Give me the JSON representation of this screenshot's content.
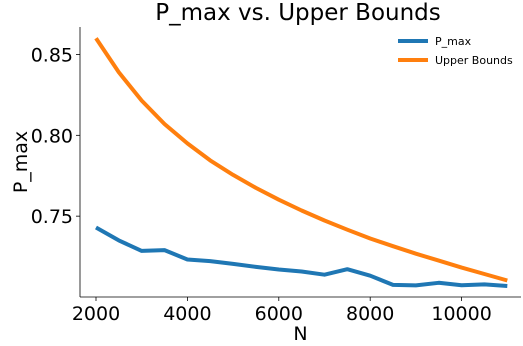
{
  "chart_data": {
    "type": "line",
    "title": "P_max vs. Upper Bounds",
    "xlabel": "N",
    "ylabel": "P_max",
    "xlim": [
      1650,
      11300
    ],
    "ylim": [
      0.7,
      0.867
    ],
    "xticks": [
      2000,
      4000,
      6000,
      8000,
      10000
    ],
    "yticks": [
      0.75,
      0.8,
      0.85
    ],
    "ytick_labels": [
      "0.75",
      "0.80",
      "0.85"
    ],
    "grid": false,
    "legend_position": "top-right",
    "x": [
      2000,
      2500,
      3000,
      3500,
      4000,
      4500,
      5000,
      5500,
      6000,
      6500,
      7000,
      7500,
      8000,
      8500,
      9000,
      9500,
      10000,
      10500,
      11000
    ],
    "series": [
      {
        "name": "P_max",
        "color": "#1f77b4",
        "values": [
          0.743,
          0.735,
          0.7285,
          0.729,
          0.7232,
          0.7222,
          0.7205,
          0.7186,
          0.717,
          0.7158,
          0.7138,
          0.7172,
          0.7132,
          0.7075,
          0.7072,
          0.7088,
          0.7073,
          0.7078,
          0.7068
        ]
      },
      {
        "name": "Upper Bounds",
        "color": "#ff7f0e",
        "values": [
          0.86,
          0.839,
          0.8215,
          0.807,
          0.795,
          0.7845,
          0.7755,
          0.7675,
          0.7602,
          0.7535,
          0.7473,
          0.7416,
          0.7362,
          0.7314,
          0.7268,
          0.7225,
          0.7182,
          0.7142,
          0.7102
        ]
      }
    ]
  }
}
